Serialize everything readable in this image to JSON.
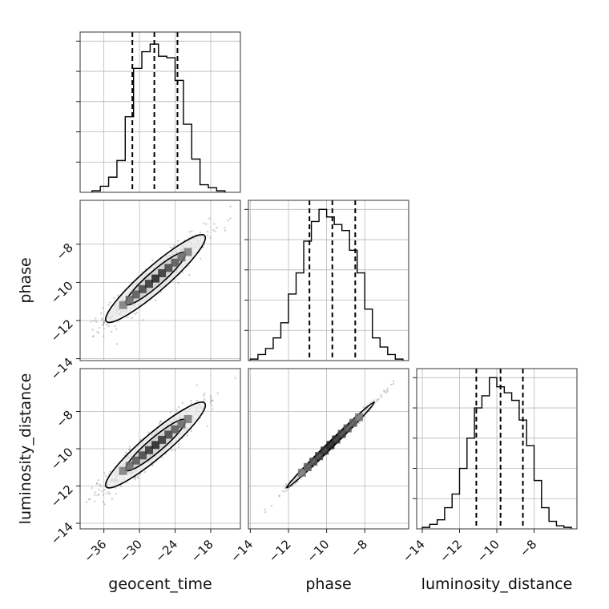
{
  "chart_data": {
    "type": "scatter",
    "subtype": "corner-plot",
    "parameters": [
      "geocent_time",
      "phase",
      "luminosity_distance"
    ],
    "xlabels": {
      "geocent_time": "geocent_time",
      "phase": "phase",
      "luminosity_distance": "luminosity_distance"
    },
    "ylabels": {
      "phase": "phase",
      "luminosity_distance": "luminosity_distance"
    },
    "ranges": {
      "geocent_time": [
        -40,
        -13
      ],
      "phase": [
        -14.1,
        -5.7
      ],
      "luminosity_distance": [
        -14.3,
        -5.7
      ]
    },
    "ticks": {
      "geocent_time": [
        -36,
        -30,
        -24,
        -18
      ],
      "phase": [
        -14,
        -12,
        -10,
        -8
      ],
      "luminosity_distance": [
        -14,
        -12,
        -10,
        -8
      ]
    },
    "tick_labels": {
      "geocent_time": [
        "−36",
        "−30",
        "−24",
        "−18"
      ],
      "phase": [
        "−14",
        "−12",
        "−10",
        "−8"
      ],
      "luminosity_distance": [
        "−14",
        "−12",
        "−10",
        "−8"
      ]
    },
    "histograms": {
      "geocent_time": {
        "edges": [
          -38,
          -36.6,
          -35.2,
          -33.8,
          -32.4,
          -31,
          -29.6,
          -28.2,
          -26.8,
          -25.4,
          -24,
          -22.6,
          -21.2,
          -19.8,
          -18.4,
          -17,
          -15.6
        ],
        "counts": [
          1,
          4,
          10,
          21,
          50,
          82,
          93,
          98,
          90,
          89,
          74,
          45,
          22,
          5,
          3,
          1
        ],
        "ymax": 106
      },
      "phase": {
        "edges": [
          -14,
          -13.6,
          -13.2,
          -12.8,
          -12.4,
          -12,
          -11.6,
          -11.2,
          -10.8,
          -10.4,
          -10,
          -9.6,
          -9.2,
          -8.8,
          -8.4,
          -8,
          -7.6,
          -7.2,
          -6.8,
          -6.4,
          -6
        ],
        "counts": [
          1,
          4,
          8,
          15,
          25,
          44,
          58,
          79,
          92,
          100,
          95,
          90,
          86,
          73,
          58,
          34,
          15,
          9,
          4,
          1
        ],
        "ymax": 106
      },
      "luminosity_distance": {
        "edges": [
          -14,
          -13.6,
          -13.2,
          -12.8,
          -12.4,
          -12,
          -11.6,
          -11.2,
          -10.8,
          -10.4,
          -10,
          -9.6,
          -9.2,
          -8.8,
          -8.4,
          -8,
          -7.6,
          -7.2,
          -6.8,
          -6.4,
          -6
        ],
        "counts": [
          1,
          3,
          6,
          14,
          23,
          40,
          60,
          80,
          88,
          100,
          94,
          90,
          85,
          72,
          55,
          32,
          14,
          5,
          2,
          1
        ],
        "ymax": 106
      }
    },
    "quantiles": {
      "geocent_time": [
        -31.2,
        -27.5,
        -23.6
      ],
      "phase": [
        -10.9,
        -9.7,
        -8.5
      ],
      "luminosity_distance": [
        -11.1,
        -9.8,
        -8.6
      ]
    },
    "correlations": {
      "geocent_time|phase": {
        "mean": [
          -27.3,
          -9.8
        ],
        "sigma": [
          4.2,
          1.15
        ],
        "rho": 0.93
      },
      "geocent_time|luminosity_distance": {
        "mean": [
          -27.3,
          -9.8
        ],
        "sigma": [
          4.2,
          1.15
        ],
        "rho": 0.93
      },
      "phase|luminosity_distance": {
        "mean": [
          -9.8,
          -9.8
        ],
        "sigma": [
          1.15,
          1.15
        ],
        "rho": 0.995
      }
    },
    "grid": true,
    "legend": "none",
    "colors": {
      "points": "#6a6a6a",
      "lines": "#000000",
      "grid": "#b8b8b8"
    }
  }
}
